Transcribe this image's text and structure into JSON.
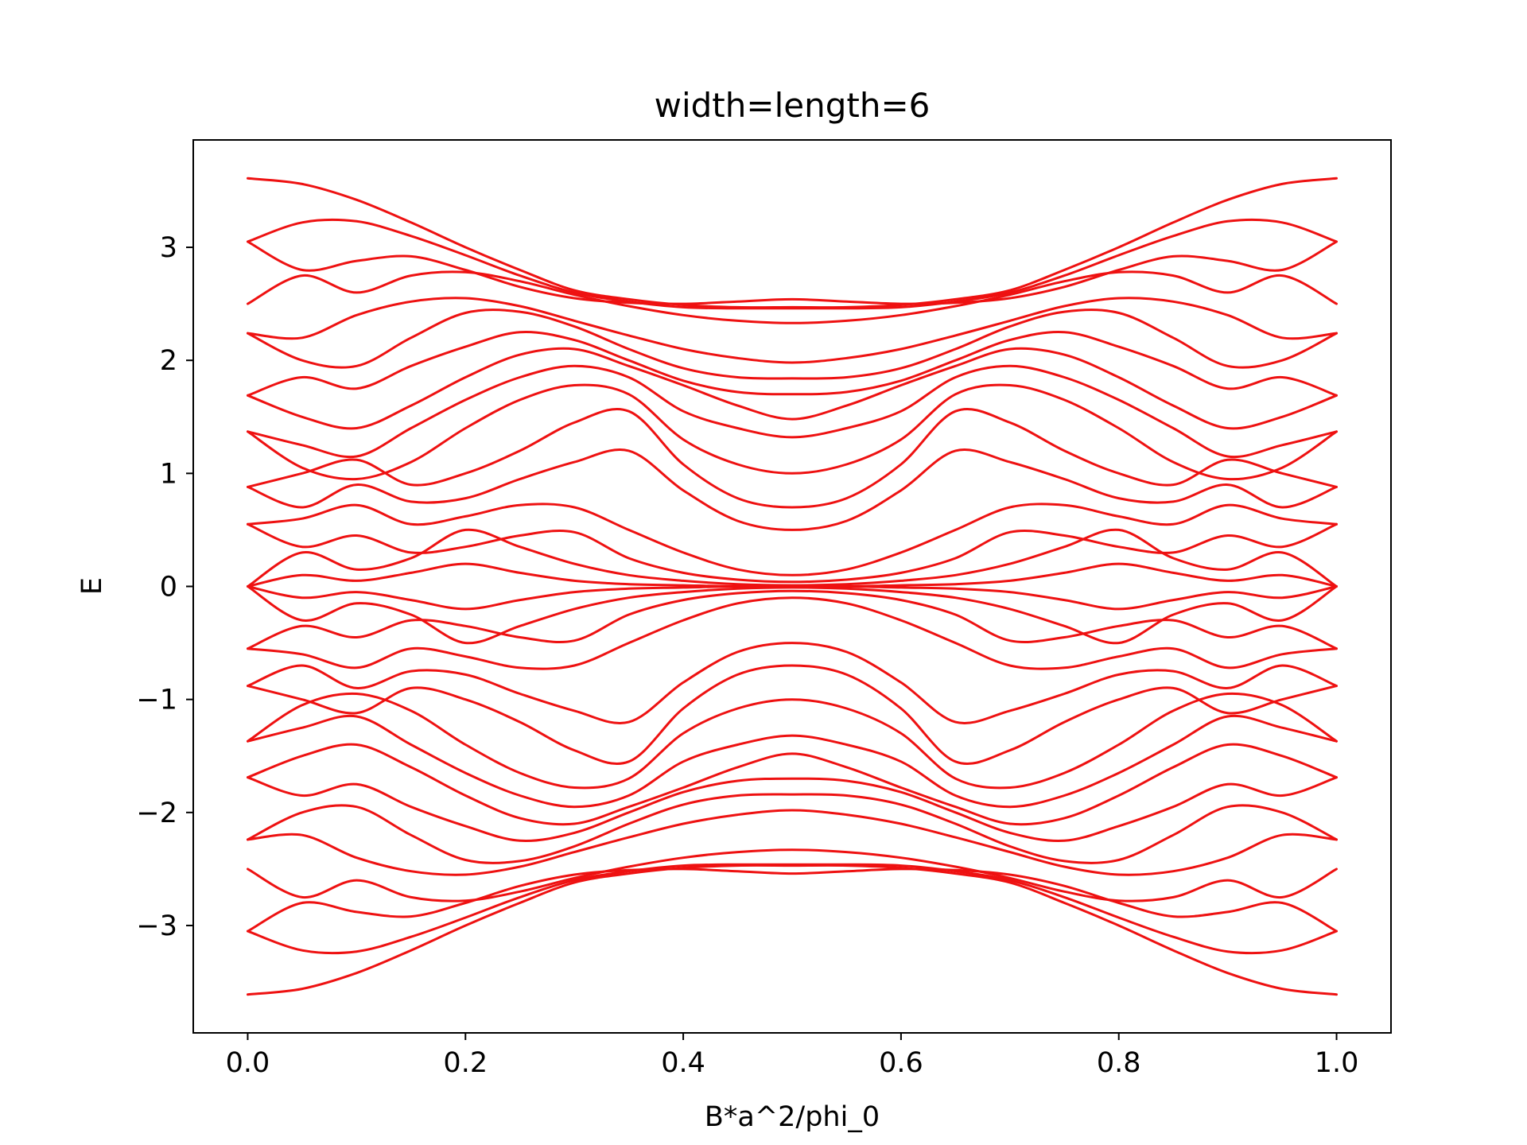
{
  "chart_data": {
    "type": "line",
    "title": "width=length=6",
    "xlabel": "B*a^2/phi_0",
    "ylabel": "E",
    "xlim": [
      -0.05,
      1.05
    ],
    "ylim": [
      -3.95,
      3.95
    ],
    "xticks": [
      0.0,
      0.2,
      0.4,
      0.6,
      0.8,
      1.0
    ],
    "xtick_labels": [
      "0.0",
      "0.2",
      "0.4",
      "0.6",
      "0.8",
      "1.0"
    ],
    "yticks": [
      -3,
      -2,
      -1,
      0,
      1,
      2,
      3
    ],
    "ytick_labels": [
      "−3",
      "−2",
      "−1",
      "0",
      "1",
      "2",
      "3"
    ],
    "grid": false,
    "legend": "none",
    "line_color": "#ee1111",
    "x": [
      0.0,
      0.05,
      0.1,
      0.15,
      0.2,
      0.25,
      0.3,
      0.35,
      0.4,
      0.45,
      0.5,
      0.55,
      0.6,
      0.65,
      0.7,
      0.75,
      0.8,
      0.85,
      0.9,
      0.95,
      1.0
    ],
    "series": [
      {
        "values": [
          3.61,
          3.56,
          3.42,
          3.22,
          3.0,
          2.8,
          2.62,
          2.54,
          2.49,
          2.47,
          2.47,
          2.47,
          2.49,
          2.54,
          2.62,
          2.8,
          3.0,
          3.22,
          3.42,
          3.56,
          3.61
        ]
      },
      {
        "values": [
          3.05,
          3.22,
          3.23,
          3.1,
          2.93,
          2.75,
          2.6,
          2.52,
          2.47,
          2.46,
          2.46,
          2.46,
          2.47,
          2.52,
          2.6,
          2.75,
          2.93,
          3.1,
          3.23,
          3.22,
          3.05
        ]
      },
      {
        "values": [
          3.05,
          2.8,
          2.88,
          2.92,
          2.8,
          2.65,
          2.55,
          2.51,
          2.5,
          2.52,
          2.54,
          2.52,
          2.5,
          2.51,
          2.55,
          2.65,
          2.8,
          2.92,
          2.88,
          2.8,
          3.05
        ]
      },
      {
        "values": [
          2.5,
          2.75,
          2.6,
          2.75,
          2.78,
          2.7,
          2.58,
          2.48,
          2.4,
          2.35,
          2.33,
          2.35,
          2.4,
          2.48,
          2.58,
          2.7,
          2.78,
          2.75,
          2.6,
          2.75,
          2.5
        ]
      },
      {
        "values": [
          2.24,
          2.2,
          2.4,
          2.52,
          2.55,
          2.48,
          2.35,
          2.22,
          2.1,
          2.02,
          1.98,
          2.02,
          2.1,
          2.22,
          2.35,
          2.48,
          2.55,
          2.52,
          2.4,
          2.2,
          2.24
        ]
      },
      {
        "values": [
          2.24,
          2.0,
          1.95,
          2.2,
          2.42,
          2.43,
          2.3,
          2.1,
          1.93,
          1.85,
          1.84,
          1.85,
          1.93,
          2.1,
          2.3,
          2.43,
          2.42,
          2.2,
          1.95,
          2.0,
          2.24
        ]
      },
      {
        "values": [
          1.69,
          1.85,
          1.75,
          1.95,
          2.12,
          2.25,
          2.18,
          2.0,
          1.82,
          1.72,
          1.7,
          1.72,
          1.82,
          2.0,
          2.18,
          2.25,
          2.12,
          1.95,
          1.75,
          1.85,
          1.69
        ]
      },
      {
        "values": [
          1.69,
          1.5,
          1.4,
          1.6,
          1.85,
          2.05,
          2.1,
          1.95,
          1.78,
          1.6,
          1.48,
          1.6,
          1.78,
          1.95,
          2.1,
          2.05,
          1.85,
          1.6,
          1.4,
          1.5,
          1.69
        ]
      },
      {
        "values": [
          1.37,
          1.25,
          1.15,
          1.4,
          1.65,
          1.85,
          1.95,
          1.85,
          1.55,
          1.4,
          1.32,
          1.4,
          1.55,
          1.85,
          1.95,
          1.85,
          1.65,
          1.4,
          1.15,
          1.25,
          1.37
        ]
      },
      {
        "values": [
          1.37,
          1.05,
          0.95,
          1.1,
          1.4,
          1.65,
          1.78,
          1.7,
          1.3,
          1.08,
          1.0,
          1.08,
          1.3,
          1.7,
          1.78,
          1.65,
          1.4,
          1.1,
          0.95,
          1.05,
          1.37
        ]
      },
      {
        "values": [
          0.88,
          1.0,
          1.12,
          0.9,
          1.0,
          1.2,
          1.45,
          1.55,
          1.08,
          0.78,
          0.7,
          0.78,
          1.08,
          1.55,
          1.45,
          1.2,
          1.0,
          0.9,
          1.12,
          1.0,
          0.88
        ]
      },
      {
        "values": [
          0.88,
          0.7,
          0.9,
          0.75,
          0.78,
          0.95,
          1.1,
          1.2,
          0.85,
          0.58,
          0.5,
          0.58,
          0.85,
          1.2,
          1.1,
          0.95,
          0.78,
          0.75,
          0.9,
          0.7,
          0.88
        ]
      },
      {
        "values": [
          0.55,
          0.6,
          0.72,
          0.55,
          0.62,
          0.72,
          0.7,
          0.5,
          0.3,
          0.15,
          0.1,
          0.15,
          0.3,
          0.5,
          0.7,
          0.72,
          0.62,
          0.55,
          0.72,
          0.6,
          0.55
        ]
      },
      {
        "values": [
          0.55,
          0.35,
          0.45,
          0.3,
          0.35,
          0.45,
          0.48,
          0.25,
          0.12,
          0.06,
          0.04,
          0.06,
          0.12,
          0.25,
          0.48,
          0.45,
          0.35,
          0.3,
          0.45,
          0.35,
          0.55
        ]
      },
      {
        "values": [
          0.0,
          0.3,
          0.15,
          0.25,
          0.5,
          0.35,
          0.2,
          0.1,
          0.05,
          0.02,
          0.01,
          0.02,
          0.05,
          0.1,
          0.2,
          0.35,
          0.5,
          0.25,
          0.15,
          0.3,
          0.0
        ]
      },
      {
        "values": [
          0.0,
          0.1,
          0.05,
          0.12,
          0.2,
          0.12,
          0.05,
          0.02,
          0.01,
          0.0,
          0.0,
          0.0,
          0.01,
          0.02,
          0.05,
          0.12,
          0.2,
          0.12,
          0.05,
          0.1,
          0.0
        ]
      },
      {
        "values": [
          0.0,
          -0.1,
          -0.05,
          -0.12,
          -0.2,
          -0.12,
          -0.05,
          -0.02,
          -0.01,
          0.0,
          0.0,
          0.0,
          -0.01,
          -0.02,
          -0.05,
          -0.12,
          -0.2,
          -0.12,
          -0.05,
          -0.1,
          0.0
        ]
      },
      {
        "values": [
          0.0,
          -0.3,
          -0.15,
          -0.25,
          -0.5,
          -0.35,
          -0.2,
          -0.1,
          -0.05,
          -0.02,
          -0.01,
          -0.02,
          -0.05,
          -0.1,
          -0.2,
          -0.35,
          -0.5,
          -0.25,
          -0.15,
          -0.3,
          0.0
        ]
      },
      {
        "values": [
          -0.55,
          -0.35,
          -0.45,
          -0.3,
          -0.35,
          -0.45,
          -0.48,
          -0.25,
          -0.12,
          -0.06,
          -0.04,
          -0.06,
          -0.12,
          -0.25,
          -0.48,
          -0.45,
          -0.35,
          -0.3,
          -0.45,
          -0.35,
          -0.55
        ]
      },
      {
        "values": [
          -0.55,
          -0.6,
          -0.72,
          -0.55,
          -0.62,
          -0.72,
          -0.7,
          -0.5,
          -0.3,
          -0.15,
          -0.1,
          -0.15,
          -0.3,
          -0.5,
          -0.7,
          -0.72,
          -0.62,
          -0.55,
          -0.72,
          -0.6,
          -0.55
        ]
      },
      {
        "values": [
          -0.88,
          -0.7,
          -0.9,
          -0.75,
          -0.78,
          -0.95,
          -1.1,
          -1.2,
          -0.85,
          -0.58,
          -0.5,
          -0.58,
          -0.85,
          -1.2,
          -1.1,
          -0.95,
          -0.78,
          -0.75,
          -0.9,
          -0.7,
          -0.88
        ]
      },
      {
        "values": [
          -0.88,
          -1.0,
          -1.12,
          -0.9,
          -1.0,
          -1.2,
          -1.45,
          -1.55,
          -1.08,
          -0.78,
          -0.7,
          -0.78,
          -1.08,
          -1.55,
          -1.45,
          -1.2,
          -1.0,
          -0.9,
          -1.12,
          -1.0,
          -0.88
        ]
      },
      {
        "values": [
          -1.37,
          -1.05,
          -0.95,
          -1.1,
          -1.4,
          -1.65,
          -1.78,
          -1.7,
          -1.3,
          -1.08,
          -1.0,
          -1.08,
          -1.3,
          -1.7,
          -1.78,
          -1.65,
          -1.4,
          -1.1,
          -0.95,
          -1.05,
          -1.37
        ]
      },
      {
        "values": [
          -1.37,
          -1.25,
          -1.15,
          -1.4,
          -1.65,
          -1.85,
          -1.95,
          -1.85,
          -1.55,
          -1.4,
          -1.32,
          -1.4,
          -1.55,
          -1.85,
          -1.95,
          -1.85,
          -1.65,
          -1.4,
          -1.15,
          -1.25,
          -1.37
        ]
      },
      {
        "values": [
          -1.69,
          -1.5,
          -1.4,
          -1.6,
          -1.85,
          -2.05,
          -2.1,
          -1.95,
          -1.78,
          -1.6,
          -1.48,
          -1.6,
          -1.78,
          -1.95,
          -2.1,
          -2.05,
          -1.85,
          -1.6,
          -1.4,
          -1.5,
          -1.69
        ]
      },
      {
        "values": [
          -1.69,
          -1.85,
          -1.75,
          -1.95,
          -2.12,
          -2.25,
          -2.18,
          -2.0,
          -1.82,
          -1.72,
          -1.7,
          -1.72,
          -1.82,
          -2.0,
          -2.18,
          -2.25,
          -2.12,
          -1.95,
          -1.75,
          -1.85,
          -1.69
        ]
      },
      {
        "values": [
          -2.24,
          -2.0,
          -1.95,
          -2.2,
          -2.42,
          -2.43,
          -2.3,
          -2.1,
          -1.93,
          -1.85,
          -1.84,
          -1.85,
          -1.93,
          -2.1,
          -2.3,
          -2.43,
          -2.42,
          -2.2,
          -1.95,
          -2.0,
          -2.24
        ]
      },
      {
        "values": [
          -2.24,
          -2.2,
          -2.4,
          -2.52,
          -2.55,
          -2.48,
          -2.35,
          -2.22,
          -2.1,
          -2.02,
          -1.98,
          -2.02,
          -2.1,
          -2.22,
          -2.35,
          -2.48,
          -2.55,
          -2.52,
          -2.4,
          -2.2,
          -2.24
        ]
      },
      {
        "values": [
          -2.5,
          -2.75,
          -2.6,
          -2.75,
          -2.78,
          -2.7,
          -2.58,
          -2.48,
          -2.4,
          -2.35,
          -2.33,
          -2.35,
          -2.4,
          -2.48,
          -2.58,
          -2.7,
          -2.78,
          -2.75,
          -2.6,
          -2.75,
          -2.5
        ]
      },
      {
        "values": [
          -3.05,
          -2.8,
          -2.88,
          -2.92,
          -2.8,
          -2.65,
          -2.55,
          -2.51,
          -2.5,
          -2.52,
          -2.54,
          -2.52,
          -2.5,
          -2.51,
          -2.55,
          -2.65,
          -2.8,
          -2.92,
          -2.88,
          -2.8,
          -3.05
        ]
      },
      {
        "values": [
          -3.05,
          -3.22,
          -3.23,
          -3.1,
          -2.93,
          -2.75,
          -2.6,
          -2.52,
          -2.47,
          -2.46,
          -2.46,
          -2.46,
          -2.47,
          -2.52,
          -2.6,
          -2.75,
          -2.93,
          -3.1,
          -3.23,
          -3.22,
          -3.05
        ]
      },
      {
        "values": [
          -3.61,
          -3.56,
          -3.42,
          -3.22,
          -3.0,
          -2.8,
          -2.62,
          -2.54,
          -2.49,
          -2.47,
          -2.47,
          -2.47,
          -2.49,
          -2.54,
          -2.62,
          -2.8,
          -3.0,
          -3.22,
          -3.42,
          -3.56,
          -3.61
        ]
      }
    ]
  }
}
